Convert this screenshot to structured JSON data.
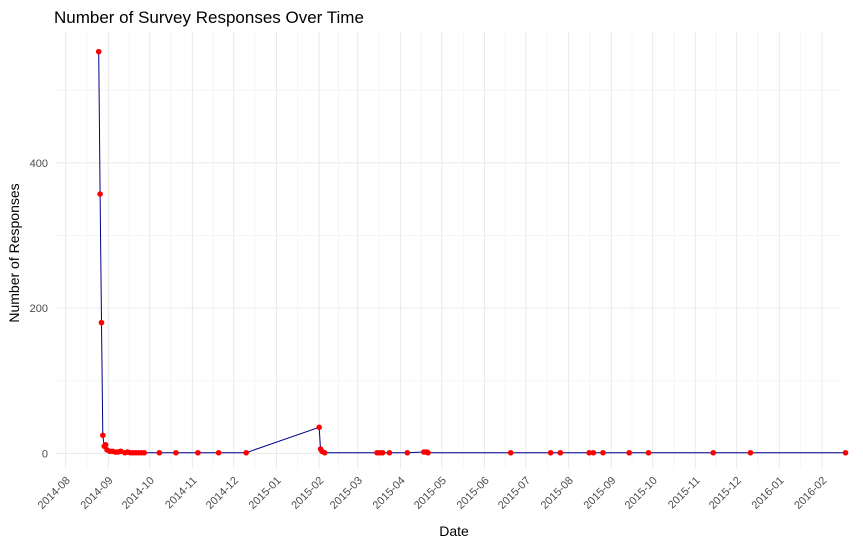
{
  "chart_data": {
    "type": "line",
    "title": "Number of Survey Responses Over Time",
    "xlabel": "Date",
    "ylabel": "Number of Responses",
    "x_is_date": true,
    "xlim": [
      "2014-07-25",
      "2016-02-14"
    ],
    "ylim": [
      -20,
      580
    ],
    "x_ticks": [
      "2014-08",
      "2014-09",
      "2014-10",
      "2014-11",
      "2014-12",
      "2015-01",
      "2015-02",
      "2015-03",
      "2015-04",
      "2015-05",
      "2015-06",
      "2015-07",
      "2015-08",
      "2015-09",
      "2015-10",
      "2015-11",
      "2015-12",
      "2016-01",
      "2016-02"
    ],
    "y_ticks": [
      0,
      200,
      400
    ],
    "grid": true,
    "line_color": "#00008b",
    "point_color": "#ff0000",
    "series": [
      {
        "x": [
          "2014-08-25",
          "2014-08-26",
          "2014-08-27",
          "2014-08-28",
          "2014-08-29",
          "2014-08-30",
          "2014-08-31",
          "2014-09-02",
          "2014-09-04",
          "2014-09-06",
          "2014-09-08",
          "2014-09-10",
          "2014-09-13",
          "2014-09-15",
          "2014-09-17",
          "2014-09-19",
          "2014-09-21",
          "2014-09-23",
          "2014-09-25",
          "2014-09-27",
          "2014-10-08",
          "2014-10-20",
          "2014-11-05",
          "2014-11-20",
          "2014-12-10",
          "2015-02-01",
          "2015-02-02",
          "2015-02-03",
          "2015-02-05",
          "2015-03-15",
          "2015-03-17",
          "2015-03-19",
          "2015-03-24",
          "2015-04-06",
          "2015-04-18",
          "2015-04-20",
          "2015-04-21",
          "2015-06-20",
          "2015-07-19",
          "2015-07-26",
          "2015-08-16",
          "2015-08-19",
          "2015-08-26",
          "2015-09-14",
          "2015-09-28",
          "2015-11-14",
          "2015-12-11",
          "2016-02-18"
        ],
        "y": [
          553,
          357,
          180,
          25,
          10,
          12,
          5,
          3,
          3,
          2,
          2,
          3,
          1,
          2,
          1,
          1,
          1,
          1,
          1,
          1,
          1,
          1,
          1,
          1,
          1,
          36,
          6,
          3,
          1,
          1,
          1,
          1,
          1,
          1,
          2,
          2,
          1,
          1,
          1,
          1,
          1,
          1,
          1,
          1,
          1,
          1,
          1,
          1
        ]
      }
    ]
  }
}
